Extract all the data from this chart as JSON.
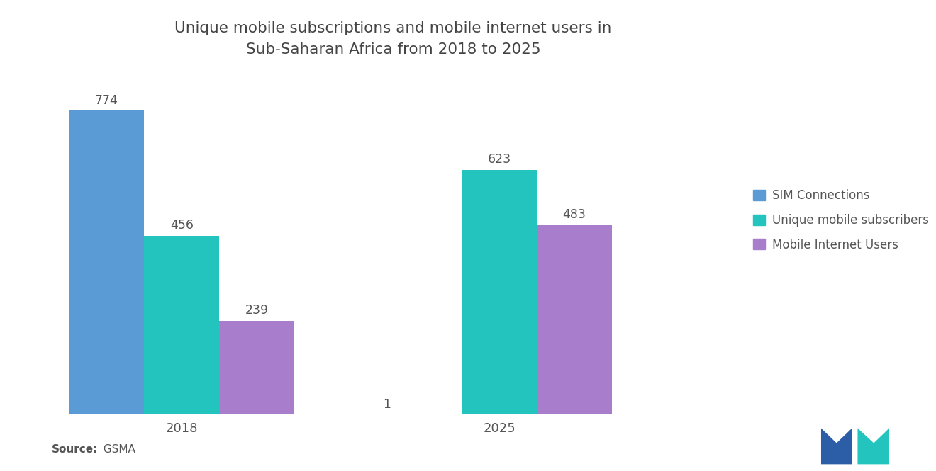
{
  "title_line1": "Unique mobile subscriptions and mobile internet users in",
  "title_line2": "Sub-Saharan Africa from 2018 to 2025",
  "title_fontsize": 15.5,
  "years": [
    "2018",
    "2025"
  ],
  "categories": [
    "SIM Connections",
    "Unique mobile subscribers",
    "Mobile Internet Users"
  ],
  "values": {
    "2018": [
      774,
      456,
      239
    ],
    "2025": [
      1,
      623,
      483
    ]
  },
  "bar_colors": {
    "SIM Connections": "#5B9BD5",
    "Unique mobile subscribers": "#23C4BE",
    "Mobile Internet Users": "#A87ECC"
  },
  "source_bold": "Source:",
  "source_regular": "  GSMA",
  "background_color": "#FFFFFF",
  "bar_width": 0.13,
  "ylim": [
    0,
    900
  ],
  "label_fontsize": 12.5,
  "tick_fontsize": 13,
  "label_color": "#555555",
  "legend_fontsize": 12
}
